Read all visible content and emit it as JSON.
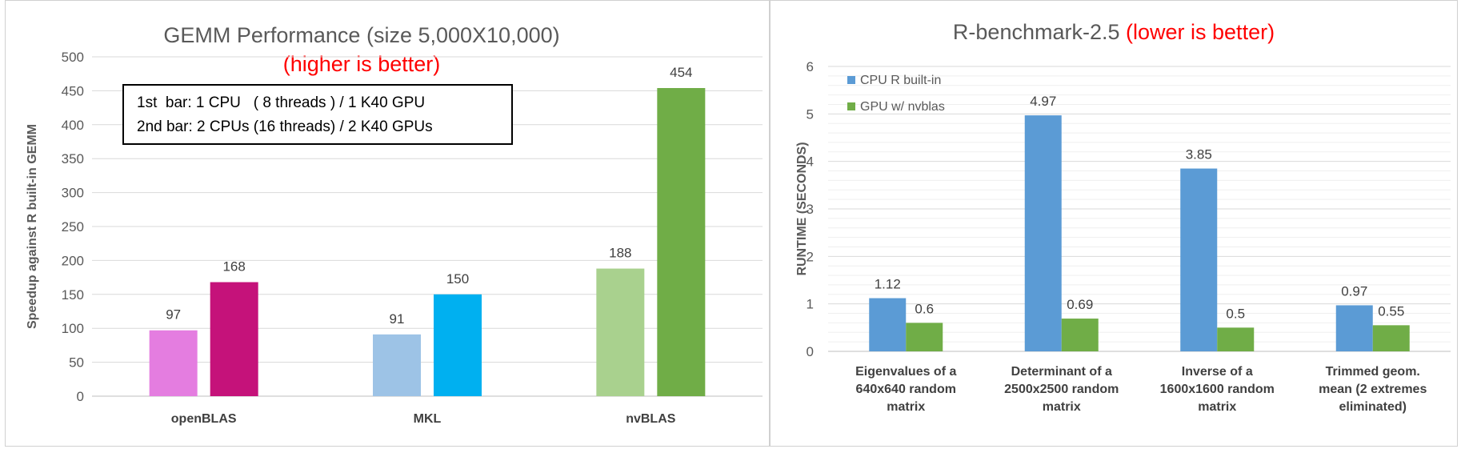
{
  "chart_data": [
    {
      "type": "bar",
      "title": "GEMM Performance (size 5,000X10,000)",
      "subtitle": "(higher is better)",
      "ylabel": "Speedup against R built-in GEMM",
      "ylim": [
        0,
        500
      ],
      "yticks": [
        "0",
        "50",
        "100",
        "150",
        "200",
        "250",
        "300",
        "350",
        "400",
        "450",
        "500"
      ],
      "categories": [
        "openBLAS",
        "MKL",
        "nvBLAS"
      ],
      "annotation": [
        "1st  bar: 1 CPU   ( 8 threads ) / 1 K40 GPU",
        "2nd bar: 2 CPUs (16 threads) / 2 K40 GPUs"
      ],
      "series": [
        {
          "values": [
            97,
            91,
            188
          ],
          "colors": [
            "#e47de0",
            "#9dc3e6",
            "#a9d18e"
          ]
        },
        {
          "values": [
            168,
            150,
            454
          ],
          "colors": [
            "#c5127a",
            "#00b0f0",
            "#70ad47"
          ]
        }
      ],
      "grid": true
    },
    {
      "type": "bar",
      "title": "R-benchmark-2.5",
      "subtitle": "(lower is better)",
      "ylabel": "RUNTIME (SECONDS)",
      "ylim": [
        0,
        6
      ],
      "yticks": [
        "0",
        "1",
        "2",
        "3",
        "4",
        "5",
        "6"
      ],
      "categories": [
        [
          "Eigenvalues of a",
          "640x640 random",
          "matrix"
        ],
        [
          "Determinant of a",
          "2500x2500 random",
          "matrix"
        ],
        [
          "Inverse of a",
          "1600x1600 random",
          "matrix"
        ],
        [
          "Trimmed geom.",
          "mean (2 extremes",
          "eliminated)"
        ]
      ],
      "series": [
        {
          "name": "CPU R built-in",
          "values": [
            1.12,
            4.97,
            3.85,
            0.97
          ],
          "color": "#5b9bd5"
        },
        {
          "name": "GPU w/ nvblas",
          "values": [
            0.6,
            0.69,
            0.5,
            0.55
          ],
          "color": "#70ad47"
        }
      ],
      "legend_position": "top-left",
      "grid": true
    }
  ]
}
